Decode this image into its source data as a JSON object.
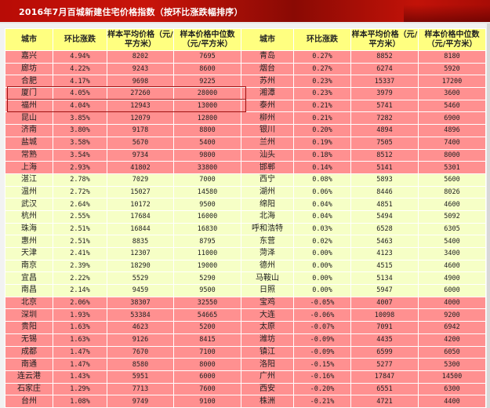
{
  "title": "2016年7月百城新建住宅价格指数（按环比涨跌幅排序）",
  "headers": [
    "城市",
    "环比涨跌",
    "样本平均价格（元/平方米）",
    "样本价格中位数（元/平方米）",
    "城市",
    "环比涨跌",
    "样本平均价格（元/平方米）",
    "样本价格中位数（元/平方米）"
  ],
  "colors": {
    "banner": "#b80c06",
    "header": "#ffff80",
    "rise_strong": "#ff9090",
    "rise_mild": "#f6ffc6",
    "highlight_border": "#a01010"
  },
  "highlighted_cities": [
    "厦门",
    "福州"
  ],
  "rows": [
    {
      "band": "red",
      "left": [
        "嘉兴",
        "4.94%",
        "8202",
        "7695"
      ],
      "right": [
        "青岛",
        "0.27%",
        "8852",
        "8180"
      ]
    },
    {
      "band": "red",
      "left": [
        "廊坊",
        "4.22%",
        "9243",
        "8600"
      ],
      "right": [
        "烟台",
        "0.27%",
        "6274",
        "5920"
      ]
    },
    {
      "band": "red",
      "left": [
        "合肥",
        "4.17%",
        "9698",
        "9225"
      ],
      "right": [
        "苏州",
        "0.23%",
        "15337",
        "17200"
      ]
    },
    {
      "band": "red",
      "left": [
        "厦门",
        "4.05%",
        "27260",
        "28000"
      ],
      "right": [
        "湘潭",
        "0.23%",
        "3979",
        "3600"
      ]
    },
    {
      "band": "red",
      "left": [
        "福州",
        "4.04%",
        "12943",
        "13000"
      ],
      "right": [
        "泰州",
        "0.21%",
        "5741",
        "5460"
      ]
    },
    {
      "band": "red",
      "left": [
        "昆山",
        "3.85%",
        "12079",
        "12800"
      ],
      "right": [
        "柳州",
        "0.21%",
        "7282",
        "6900"
      ]
    },
    {
      "band": "red",
      "left": [
        "济南",
        "3.80%",
        "9178",
        "8800"
      ],
      "right": [
        "银川",
        "0.20%",
        "4894",
        "4896"
      ]
    },
    {
      "band": "red",
      "left": [
        "盐城",
        "3.58%",
        "5670",
        "5400"
      ],
      "right": [
        "兰州",
        "0.19%",
        "7505",
        "7400"
      ]
    },
    {
      "band": "red",
      "left": [
        "常熟",
        "3.54%",
        "9734",
        "9800"
      ],
      "right": [
        "汕头",
        "0.18%",
        "8512",
        "8000"
      ]
    },
    {
      "band": "red",
      "left": [
        "上海",
        "2.93%",
        "41802",
        "33800"
      ],
      "right": [
        "邯郸",
        "0.14%",
        "5141",
        "5301"
      ]
    },
    {
      "band": "yellow",
      "left": [
        "湛江",
        "2.78%",
        "7029",
        "7000"
      ],
      "right": [
        "西宁",
        "0.08%",
        "5893",
        "5600"
      ]
    },
    {
      "band": "yellow",
      "left": [
        "温州",
        "2.72%",
        "15027",
        "14580"
      ],
      "right": [
        "湖州",
        "0.06%",
        "8446",
        "8026"
      ]
    },
    {
      "band": "yellow",
      "left": [
        "武汉",
        "2.64%",
        "10172",
        "9500"
      ],
      "right": [
        "绵阳",
        "0.04%",
        "4851",
        "4600"
      ]
    },
    {
      "band": "yellow",
      "left": [
        "杭州",
        "2.55%",
        "17684",
        "16000"
      ],
      "right": [
        "北海",
        "0.04%",
        "5494",
        "5092"
      ]
    },
    {
      "band": "yellow",
      "left": [
        "珠海",
        "2.51%",
        "16844",
        "16830"
      ],
      "right": [
        "呼和浩特",
        "0.03%",
        "6528",
        "6305"
      ]
    },
    {
      "band": "yellow",
      "left": [
        "惠州",
        "2.51%",
        "8835",
        "8795"
      ],
      "right": [
        "东营",
        "0.02%",
        "5463",
        "5400"
      ]
    },
    {
      "band": "yellow",
      "left": [
        "天津",
        "2.41%",
        "12307",
        "11000"
      ],
      "right": [
        "菏泽",
        "0.00%",
        "4123",
        "3400"
      ]
    },
    {
      "band": "yellow",
      "left": [
        "南京",
        "2.39%",
        "18290",
        "19000"
      ],
      "right": [
        "德州",
        "0.00%",
        "4515",
        "4600"
      ]
    },
    {
      "band": "yellow",
      "left": [
        "宜昌",
        "2.22%",
        "5529",
        "5290"
      ],
      "right": [
        "马鞍山",
        "0.00%",
        "5134",
        "4900"
      ]
    },
    {
      "band": "yellow",
      "left": [
        "南昌",
        "2.14%",
        "9459",
        "9500"
      ],
      "right": [
        "日照",
        "0.00%",
        "5947",
        "6000"
      ]
    },
    {
      "band": "red",
      "left": [
        "北京",
        "2.06%",
        "38307",
        "32550"
      ],
      "right": [
        "宝鸡",
        "-0.05%",
        "4007",
        "4000"
      ]
    },
    {
      "band": "red",
      "left": [
        "深圳",
        "1.93%",
        "53384",
        "54665"
      ],
      "right": [
        "大连",
        "-0.06%",
        "10098",
        "9200"
      ]
    },
    {
      "band": "red",
      "left": [
        "贵阳",
        "1.63%",
        "4623",
        "5200"
      ],
      "right": [
        "太原",
        "-0.07%",
        "7091",
        "6942"
      ]
    },
    {
      "band": "red",
      "left": [
        "无锡",
        "1.63%",
        "9126",
        "8415"
      ],
      "right": [
        "潍坊",
        "-0.09%",
        "4435",
        "4200"
      ]
    },
    {
      "band": "red",
      "left": [
        "成都",
        "1.47%",
        "7670",
        "7100"
      ],
      "right": [
        "镇江",
        "-0.09%",
        "6599",
        "6050"
      ]
    },
    {
      "band": "red",
      "left": [
        "南通",
        "1.47%",
        "8580",
        "8000"
      ],
      "right": [
        "洛阳",
        "-0.15%",
        "5277",
        "5300"
      ]
    },
    {
      "band": "red",
      "left": [
        "连云港",
        "1.43%",
        "5951",
        "6000"
      ],
      "right": [
        "广州",
        "-0.16%",
        "17847",
        "14500"
      ]
    },
    {
      "band": "red",
      "left": [
        "石家庄",
        "1.29%",
        "7713",
        "7600"
      ],
      "right": [
        "西安",
        "-0.20%",
        "6551",
        "6300"
      ]
    },
    {
      "band": "red",
      "left": [
        "台州",
        "1.08%",
        "9749",
        "9100"
      ],
      "right": [
        "株洲",
        "-0.21%",
        "4721",
        "4400"
      ]
    }
  ]
}
